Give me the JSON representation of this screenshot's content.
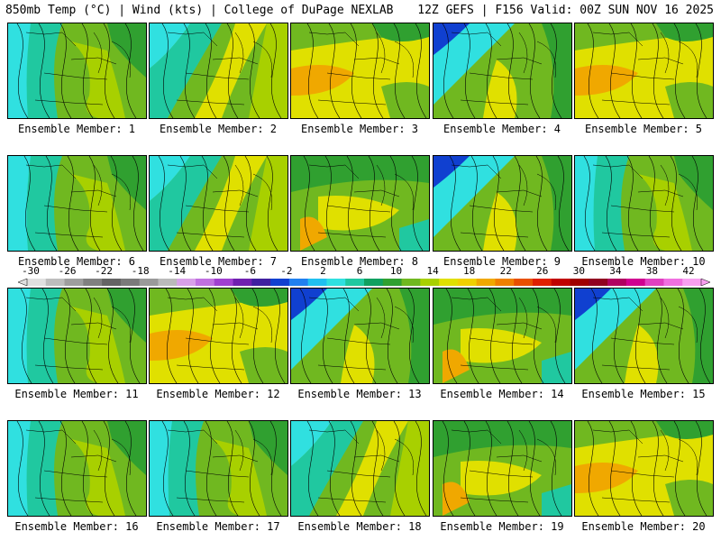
{
  "header": {
    "left": "850mb Temp (°C) | Wind (kts) | College of DuPage NEXLAB",
    "right": "12Z GEFS | F156 Valid: 00Z SUN NOV 16 2025"
  },
  "members": [
    {
      "label": "Ensemble Member: 1",
      "style": 0
    },
    {
      "label": "Ensemble Member: 2",
      "style": 1
    },
    {
      "label": "Ensemble Member: 3",
      "style": 2
    },
    {
      "label": "Ensemble Member: 4",
      "style": 3
    },
    {
      "label": "Ensemble Member: 5",
      "style": 2
    },
    {
      "label": "Ensemble Member: 6",
      "style": 0
    },
    {
      "label": "Ensemble Member: 7",
      "style": 1
    },
    {
      "label": "Ensemble Member: 8",
      "style": 4
    },
    {
      "label": "Ensemble Member: 9",
      "style": 3
    },
    {
      "label": "Ensemble Member: 10",
      "style": 0
    },
    {
      "label": "Ensemble Member: 11",
      "style": 0
    },
    {
      "label": "Ensemble Member: 12",
      "style": 2
    },
    {
      "label": "Ensemble Member: 13",
      "style": 3
    },
    {
      "label": "Ensemble Member: 14",
      "style": 4
    },
    {
      "label": "Ensemble Member: 15",
      "style": 3
    },
    {
      "label": "Ensemble Member: 16",
      "style": 0
    },
    {
      "label": "Ensemble Member: 17",
      "style": 0
    },
    {
      "label": "Ensemble Member: 18",
      "style": 1
    },
    {
      "label": "Ensemble Member: 19",
      "style": 4
    },
    {
      "label": "Ensemble Member: 20",
      "style": 2
    }
  ],
  "colorbar": {
    "ticks": [
      "-30",
      "-26",
      "-22",
      "-18",
      "-14",
      "-10",
      "-6",
      "-2",
      "2",
      "6",
      "10",
      "14",
      "18",
      "22",
      "26",
      "30",
      "34",
      "38",
      "42"
    ],
    "colors": [
      "#e0e0e0",
      "#bdbdbd",
      "#9e9e9e",
      "#808080",
      "#646464",
      "#7a7a7a",
      "#9a9a9a",
      "#bababa",
      "#d8a0e8",
      "#c070e0",
      "#a040d0",
      "#7020b0",
      "#4020a0",
      "#1040d0",
      "#2080f0",
      "#20c0f0",
      "#30e0e0",
      "#20c8a0",
      "#10a060",
      "#30a030",
      "#70b820",
      "#a8d000",
      "#e0e000",
      "#f0d000",
      "#f0a800",
      "#f08000",
      "#e85000",
      "#e02000",
      "#c00000",
      "#a00000",
      "#900020",
      "#b00060",
      "#d00090",
      "#e040c0",
      "#f070e0",
      "#f8a0f0"
    ]
  }
}
